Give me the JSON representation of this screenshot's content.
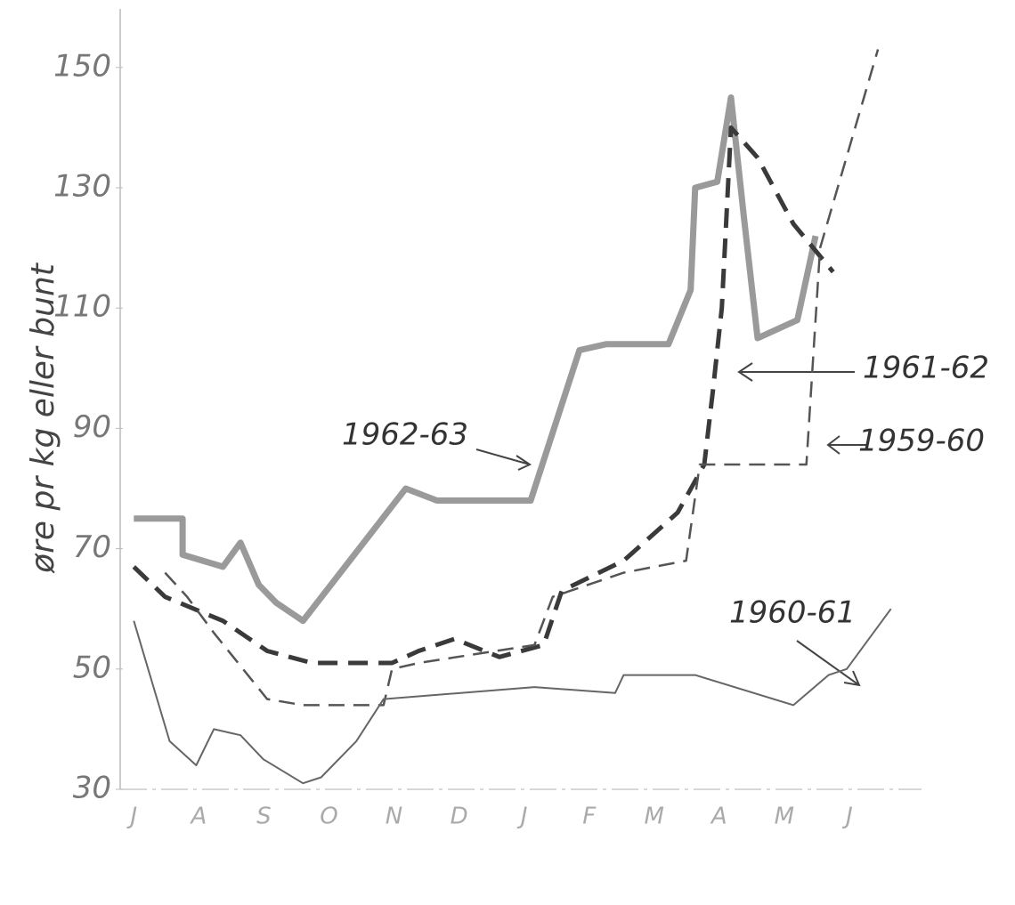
{
  "chart_data": {
    "type": "line",
    "y_label": "øre pr kg eller bunt",
    "categories": [
      "J",
      "A",
      "S",
      "O",
      "N",
      "D",
      "J",
      "F",
      "M",
      "A",
      "M",
      "J"
    ],
    "xlim": [
      -0.1,
      12
    ],
    "ylim": [
      30,
      155
    ],
    "yticks": [
      30,
      50,
      70,
      90,
      110,
      130,
      150
    ],
    "series": [
      {
        "name": "1962-63",
        "color": "#9a9a9a",
        "style": "solid",
        "width": 7,
        "x": [
          0,
          0.75,
          0.75,
          1.37,
          1.64,
          1.92,
          2.19,
          2.6,
          4.18,
          4.66,
          6.1,
          6.85,
          7.26,
          8.22,
          8.56,
          8.63,
          8.97,
          9.18,
          9.38,
          9.59,
          10.2,
          10.48
        ],
        "values": [
          75,
          75,
          69,
          67,
          71,
          64,
          61,
          58,
          80,
          78,
          78,
          103,
          104,
          104,
          113,
          130,
          131,
          145,
          125,
          105,
          108,
          122
        ]
      },
      {
        "name": "1961-62",
        "color": "#3a3a3a",
        "style": "dashed",
        "width": 5,
        "x": [
          0,
          0.48,
          1.37,
          2.05,
          2.74,
          3.97,
          4.38,
          4.93,
          5.62,
          6.3,
          6.58,
          7.53,
          8.36,
          8.77,
          8.9,
          9.04,
          9.18,
          9.59,
          10.14,
          10.75
        ],
        "values": [
          67,
          62,
          58,
          53,
          51,
          51,
          53,
          55,
          52,
          54,
          63,
          68,
          76,
          84,
          96,
          110,
          140,
          135,
          124,
          116
        ]
      },
      {
        "name": "1959-60",
        "color": "#555555",
        "style": "dashed",
        "width": 2.5,
        "x": [
          0.48,
          0.82,
          1.23,
          2.05,
          2.6,
          3.84,
          3.97,
          4.38,
          6.16,
          6.44,
          7.53,
          8.49,
          8.7,
          10.34,
          10.55,
          11.44
        ],
        "values": [
          66,
          62,
          56,
          45,
          44,
          44,
          50,
          51,
          54,
          62,
          66,
          68,
          84,
          84,
          120,
          153
        ]
      },
      {
        "name": "1960-61",
        "color": "#666666",
        "style": "solid",
        "width": 2,
        "x": [
          0,
          0.55,
          0.96,
          1.23,
          1.64,
          1.99,
          2.6,
          2.88,
          3.42,
          3.84,
          6.16,
          7.4,
          7.53,
          8.63,
          10.14,
          10.68,
          10.96,
          11.64
        ],
        "values": [
          58,
          38,
          34,
          40,
          39,
          35,
          31,
          32,
          38,
          45,
          47,
          46,
          49,
          49,
          44,
          49,
          50,
          60
        ]
      }
    ]
  }
}
